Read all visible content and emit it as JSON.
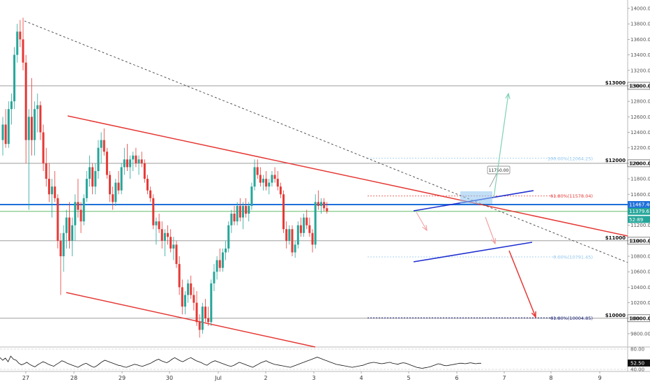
{
  "chart_data": {
    "type": "candlestick",
    "price_axis": {
      "range": [
        9600,
        14100
      ],
      "ticks": [
        9800,
        10000,
        10200,
        10400,
        10600,
        10800,
        11000,
        11200,
        11400,
        11600,
        11800,
        12000,
        12200,
        12400,
        12600,
        12800,
        13000,
        13200,
        13400,
        13600,
        13800,
        14000
      ],
      "tick_labels": [
        "9800.00",
        "10000.00",
        "10200.00",
        "10400.00",
        "10600.00",
        "10800.00",
        "11000.00",
        "11200.00",
        "11400.00",
        "11600.00",
        "11800.00",
        "12000.00",
        "12200.00",
        "12400.00",
        "12600.00",
        "12800.00",
        "13000.00",
        "13200.00",
        "13400.00",
        "13600.00",
        "13800.00",
        "14000.00"
      ]
    },
    "date_axis": {
      "labels": [
        "27",
        "28",
        "29",
        "30",
        "Jul",
        "2",
        "3",
        "4",
        "5",
        "6",
        "7",
        "8",
        "9"
      ]
    },
    "horizontal_levels": [
      {
        "price": 13000,
        "label": "$13000",
        "tag": "13000.00"
      },
      {
        "price": 12000,
        "label": "$12000",
        "tag": "12000.00"
      },
      {
        "price": 11000,
        "label": "$11000",
        "tag": "11000.00"
      },
      {
        "price": 10000,
        "label": "$10000",
        "tag": "10000.00"
      }
    ],
    "price_tags": [
      {
        "price": 11467.46,
        "text": "11467.46",
        "color": "#1e6fd9"
      },
      {
        "price": 11379.61,
        "text": "11379.61",
        "color": "#26a69a"
      },
      {
        "price": 11275,
        "text": "52:89",
        "color": "#26a69a"
      }
    ],
    "fibonacci": [
      {
        "price": 12064.25,
        "label": "100.00%(12064.25)",
        "color": "#8ec4ee"
      },
      {
        "price": 11578.04,
        "label": "61.80%(11578.04)",
        "color": "#e53935"
      },
      {
        "price": 10791.45,
        "label": "0.00%(10791.45)",
        "color": "#8ec4ee"
      },
      {
        "price": 10004.85,
        "label": "61.80%(10004.85)",
        "color": "#1a237e"
      }
    ],
    "callout": {
      "text": "11750.00"
    },
    "oscillator": {
      "range": [
        40,
        80
      ],
      "ticks": [
        40,
        80
      ],
      "tick_labels": [
        "40.00",
        "80.00"
      ],
      "current": "52.50",
      "values": [
        63,
        58,
        62,
        55,
        66,
        60,
        58,
        52,
        49,
        51,
        54,
        50,
        47,
        45,
        49,
        52,
        55,
        53,
        50,
        48,
        46,
        50,
        53,
        57,
        55,
        52,
        50,
        48,
        46,
        44,
        47,
        50,
        52,
        49,
        46,
        44,
        47,
        51,
        55,
        58,
        56,
        54,
        52,
        50,
        48,
        47,
        45,
        44,
        46,
        48,
        50,
        49,
        47,
        46,
        48,
        50,
        52,
        55,
        58,
        60,
        57,
        55,
        53,
        56,
        60,
        63,
        60,
        57,
        55,
        58,
        61,
        63,
        60,
        57,
        55,
        53,
        50,
        48,
        52,
        55,
        57,
        55,
        53,
        51,
        49,
        47,
        46,
        48,
        51,
        54,
        52,
        50,
        48,
        46,
        44,
        47,
        50,
        53,
        55,
        57,
        54,
        52,
        50,
        49,
        48,
        47,
        46,
        45,
        44,
        46,
        48,
        50,
        52,
        54,
        56,
        58,
        60,
        62,
        64,
        62,
        60,
        58,
        56,
        54,
        52,
        50,
        49,
        48,
        47,
        46,
        45,
        44,
        45,
        46,
        47,
        48,
        50,
        52,
        53,
        54,
        53,
        52,
        51,
        52,
        53,
        54,
        52,
        51,
        50,
        52,
        53,
        52,
        50,
        48,
        46,
        44,
        43,
        42,
        43,
        44,
        45,
        47,
        49,
        51,
        50,
        48,
        47,
        48,
        49,
        50,
        51,
        52,
        52,
        51,
        52,
        53,
        52,
        51,
        52,
        52
      ]
    },
    "candles": [
      {
        "o": 12300,
        "h": 12600,
        "l": 12100,
        "c": 12500
      },
      {
        "o": 12500,
        "h": 12700,
        "l": 12200,
        "c": 12250
      },
      {
        "o": 12250,
        "h": 12800,
        "l": 12200,
        "c": 12700
      },
      {
        "o": 12700,
        "h": 12900,
        "l": 12500,
        "c": 12800
      },
      {
        "o": 12800,
        "h": 13500,
        "l": 12700,
        "c": 13400
      },
      {
        "o": 13400,
        "h": 13800,
        "l": 13300,
        "c": 13700
      },
      {
        "o": 13700,
        "h": 13850,
        "l": 13500,
        "c": 13600
      },
      {
        "o": 13600,
        "h": 13880,
        "l": 13200,
        "c": 13300
      },
      {
        "o": 13300,
        "h": 13400,
        "l": 12000,
        "c": 12300
      },
      {
        "o": 12300,
        "h": 12700,
        "l": 11400,
        "c": 12600
      },
      {
        "o": 12600,
        "h": 13100,
        "l": 12100,
        "c": 12300
      },
      {
        "o": 12300,
        "h": 12800,
        "l": 12100,
        "c": 12700
      },
      {
        "o": 12700,
        "h": 12900,
        "l": 12400,
        "c": 12750
      },
      {
        "o": 12750,
        "h": 12800,
        "l": 12300,
        "c": 12400
      },
      {
        "o": 12400,
        "h": 12500,
        "l": 11900,
        "c": 12000
      },
      {
        "o": 12000,
        "h": 12200,
        "l": 11700,
        "c": 11800
      },
      {
        "o": 11800,
        "h": 12000,
        "l": 11500,
        "c": 11600
      },
      {
        "o": 11600,
        "h": 11800,
        "l": 11300,
        "c": 11700
      },
      {
        "o": 11700,
        "h": 11900,
        "l": 11500,
        "c": 11550
      },
      {
        "o": 11550,
        "h": 11600,
        "l": 10900,
        "c": 11000
      },
      {
        "o": 11000,
        "h": 11100,
        "l": 10300,
        "c": 10800
      },
      {
        "o": 10800,
        "h": 11200,
        "l": 10600,
        "c": 11100
      },
      {
        "o": 11100,
        "h": 11400,
        "l": 10900,
        "c": 11300
      },
      {
        "o": 11300,
        "h": 11500,
        "l": 10900,
        "c": 11000
      },
      {
        "o": 11000,
        "h": 11300,
        "l": 10800,
        "c": 11200
      },
      {
        "o": 11200,
        "h": 11600,
        "l": 11000,
        "c": 11500
      },
      {
        "o": 11500,
        "h": 11800,
        "l": 11300,
        "c": 11400
      },
      {
        "o": 11400,
        "h": 11500,
        "l": 11100,
        "c": 11250
      },
      {
        "o": 11250,
        "h": 11600,
        "l": 11200,
        "c": 11550
      },
      {
        "o": 11550,
        "h": 11900,
        "l": 11500,
        "c": 11800
      },
      {
        "o": 11800,
        "h": 12100,
        "l": 11700,
        "c": 11950
      },
      {
        "o": 11950,
        "h": 12000,
        "l": 11600,
        "c": 11700
      },
      {
        "o": 11700,
        "h": 12000,
        "l": 11600,
        "c": 11900
      },
      {
        "o": 11900,
        "h": 12300,
        "l": 11800,
        "c": 12200
      },
      {
        "o": 12200,
        "h": 12400,
        "l": 12000,
        "c": 12300
      },
      {
        "o": 12300,
        "h": 12450,
        "l": 12100,
        "c": 12150
      },
      {
        "o": 12150,
        "h": 12200,
        "l": 11800,
        "c": 11850
      },
      {
        "o": 11850,
        "h": 11900,
        "l": 11500,
        "c": 11600
      },
      {
        "o": 11600,
        "h": 11700,
        "l": 11400,
        "c": 11500
      },
      {
        "o": 11500,
        "h": 11800,
        "l": 11450,
        "c": 11750
      },
      {
        "o": 11750,
        "h": 11900,
        "l": 11600,
        "c": 11650
      },
      {
        "o": 11650,
        "h": 12000,
        "l": 11600,
        "c": 11950
      },
      {
        "o": 11950,
        "h": 12200,
        "l": 11850,
        "c": 12050
      },
      {
        "o": 12050,
        "h": 12250,
        "l": 11900,
        "c": 11950
      },
      {
        "o": 11950,
        "h": 12100,
        "l": 11800,
        "c": 12050
      },
      {
        "o": 12050,
        "h": 12150,
        "l": 11900,
        "c": 12100
      },
      {
        "o": 12100,
        "h": 12200,
        "l": 11950,
        "c": 12000
      },
      {
        "o": 12000,
        "h": 12100,
        "l": 11850,
        "c": 12050
      },
      {
        "o": 12050,
        "h": 12150,
        "l": 11950,
        "c": 12000
      },
      {
        "o": 12000,
        "h": 12050,
        "l": 11750,
        "c": 11800
      },
      {
        "o": 11800,
        "h": 11850,
        "l": 11600,
        "c": 11650
      },
      {
        "o": 11650,
        "h": 11700,
        "l": 11500,
        "c": 11550
      },
      {
        "o": 11550,
        "h": 11600,
        "l": 11150,
        "c": 11200
      },
      {
        "o": 11200,
        "h": 11300,
        "l": 10950,
        "c": 11250
      },
      {
        "o": 11250,
        "h": 11350,
        "l": 11100,
        "c": 11150
      },
      {
        "o": 11150,
        "h": 11250,
        "l": 10900,
        "c": 11000
      },
      {
        "o": 11000,
        "h": 11150,
        "l": 10800,
        "c": 11100
      },
      {
        "o": 11100,
        "h": 11200,
        "l": 10950,
        "c": 11050
      },
      {
        "o": 11050,
        "h": 11150,
        "l": 10850,
        "c": 10900
      },
      {
        "o": 10900,
        "h": 11050,
        "l": 10750,
        "c": 10950
      },
      {
        "o": 10950,
        "h": 11000,
        "l": 10650,
        "c": 10700
      },
      {
        "o": 10700,
        "h": 10800,
        "l": 10300,
        "c": 10400
      },
      {
        "o": 10400,
        "h": 10500,
        "l": 10050,
        "c": 10150
      },
      {
        "o": 10150,
        "h": 10350,
        "l": 10050,
        "c": 10300
      },
      {
        "o": 10300,
        "h": 10500,
        "l": 10200,
        "c": 10450
      },
      {
        "o": 10450,
        "h": 10550,
        "l": 10250,
        "c": 10300
      },
      {
        "o": 10300,
        "h": 10400,
        "l": 10100,
        "c": 10200
      },
      {
        "o": 10200,
        "h": 10350,
        "l": 9900,
        "c": 9950
      },
      {
        "o": 9950,
        "h": 10050,
        "l": 9750,
        "c": 9850
      },
      {
        "o": 9850,
        "h": 10200,
        "l": 9800,
        "c": 10150
      },
      {
        "o": 10150,
        "h": 10250,
        "l": 9950,
        "c": 10000
      },
      {
        "o": 10000,
        "h": 10150,
        "l": 9900,
        "c": 9950
      },
      {
        "o": 9950,
        "h": 10500,
        "l": 9900,
        "c": 10450
      },
      {
        "o": 10450,
        "h": 10700,
        "l": 10350,
        "c": 10600
      },
      {
        "o": 10600,
        "h": 10800,
        "l": 10500,
        "c": 10750
      },
      {
        "o": 10750,
        "h": 10900,
        "l": 10600,
        "c": 10650
      },
      {
        "o": 10650,
        "h": 10900,
        "l": 10600,
        "c": 10850
      },
      {
        "o": 10850,
        "h": 11000,
        "l": 10750,
        "c": 10900
      },
      {
        "o": 10900,
        "h": 11250,
        "l": 10850,
        "c": 11200
      },
      {
        "o": 11200,
        "h": 11400,
        "l": 11100,
        "c": 11350
      },
      {
        "o": 11350,
        "h": 11450,
        "l": 11200,
        "c": 11250
      },
      {
        "o": 11250,
        "h": 11500,
        "l": 11200,
        "c": 11450
      },
      {
        "o": 11450,
        "h": 11550,
        "l": 11250,
        "c": 11300
      },
      {
        "o": 11300,
        "h": 11500,
        "l": 11150,
        "c": 11450
      },
      {
        "o": 11450,
        "h": 11550,
        "l": 11300,
        "c": 11350
      },
      {
        "o": 11350,
        "h": 11500,
        "l": 11250,
        "c": 11450
      },
      {
        "o": 11450,
        "h": 11750,
        "l": 11400,
        "c": 11700
      },
      {
        "o": 11700,
        "h": 12050,
        "l": 11650,
        "c": 11950
      },
      {
        "o": 11950,
        "h": 12050,
        "l": 11800,
        "c": 11850
      },
      {
        "o": 11850,
        "h": 11950,
        "l": 11700,
        "c": 11750
      },
      {
        "o": 11750,
        "h": 11850,
        "l": 11650,
        "c": 11800
      },
      {
        "o": 11800,
        "h": 11900,
        "l": 11650,
        "c": 11700
      },
      {
        "o": 11700,
        "h": 11800,
        "l": 11600,
        "c": 11750
      },
      {
        "o": 11750,
        "h": 11900,
        "l": 11700,
        "c": 11850
      },
      {
        "o": 11850,
        "h": 11950,
        "l": 11750,
        "c": 11800
      },
      {
        "o": 11800,
        "h": 11900,
        "l": 11650,
        "c": 11700
      },
      {
        "o": 11700,
        "h": 11750,
        "l": 11550,
        "c": 11600
      },
      {
        "o": 11600,
        "h": 11650,
        "l": 11100,
        "c": 11150
      },
      {
        "o": 11150,
        "h": 11250,
        "l": 10900,
        "c": 11000
      },
      {
        "o": 11000,
        "h": 11200,
        "l": 10950,
        "c": 11150
      },
      {
        "o": 11150,
        "h": 11200,
        "l": 10800,
        "c": 10850
      },
      {
        "o": 10850,
        "h": 11000,
        "l": 10780,
        "c": 10950
      },
      {
        "o": 10950,
        "h": 11250,
        "l": 10900,
        "c": 11200
      },
      {
        "o": 11200,
        "h": 11300,
        "l": 11050,
        "c": 11100
      },
      {
        "o": 11100,
        "h": 11350,
        "l": 11050,
        "c": 11300
      },
      {
        "o": 11300,
        "h": 11400,
        "l": 11150,
        "c": 11200
      },
      {
        "o": 11200,
        "h": 11300,
        "l": 11050,
        "c": 11100
      },
      {
        "o": 11100,
        "h": 11150,
        "l": 10850,
        "c": 10950
      },
      {
        "o": 10950,
        "h": 11600,
        "l": 10900,
        "c": 11500
      },
      {
        "o": 11500,
        "h": 11650,
        "l": 11400,
        "c": 11450
      },
      {
        "o": 11450,
        "h": 11550,
        "l": 11350,
        "c": 11500
      },
      {
        "o": 11500,
        "h": 11550,
        "l": 11380,
        "c": 11420
      },
      {
        "o": 11420,
        "h": 11500,
        "l": 11350,
        "c": 11380
      }
    ],
    "overlay_colors": {
      "channel": "#e53935",
      "wedge": "#1e2fd0",
      "trend": "#444444",
      "level": "#999999",
      "current_price": "#1e6fd9",
      "up": "#26a69a",
      "down": "#e53935",
      "projection_up": "#7fd1b4",
      "projection_down": "#e53935"
    }
  }
}
